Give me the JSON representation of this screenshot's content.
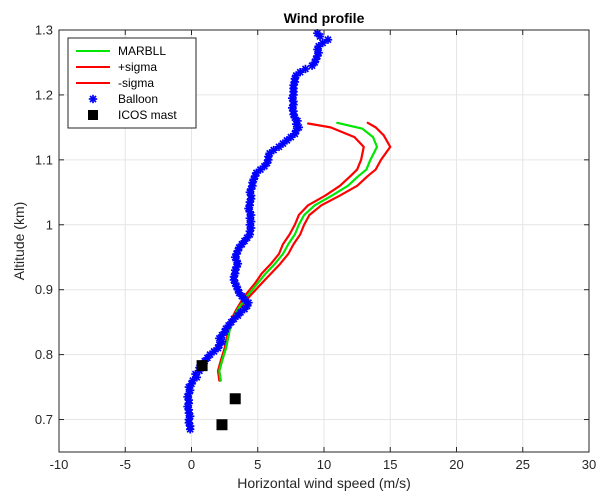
{
  "chart_data": {
    "type": "scatter",
    "title": "Wind profile",
    "xlabel": "Horizontal wind speed (m/s)",
    "ylabel": "Altitude (km)",
    "xlim": [
      -10,
      30
    ],
    "ylim": [
      0.65,
      1.3
    ],
    "x_ticks": [
      -10,
      -5,
      0,
      5,
      10,
      15,
      20,
      25,
      30
    ],
    "y_ticks": [
      0.7,
      0.8,
      0.9,
      1.0,
      1.1,
      1.2,
      1.3
    ],
    "x_tick_labels": [
      "-10",
      "-5",
      "0",
      "5",
      "10",
      "15",
      "20",
      "25",
      "30"
    ],
    "y_tick_labels": [
      "0.7",
      "0.8",
      "0.9",
      "1",
      "1.1",
      "1.2",
      "1.3"
    ],
    "grid": true,
    "legend_position": "top-left",
    "series": [
      {
        "name": "MARBLL",
        "style": "line",
        "color": "#00e600",
        "points": [
          [
            2.2,
            0.76
          ],
          [
            2.1,
            0.775
          ],
          [
            2.3,
            0.79
          ],
          [
            2.6,
            0.81
          ],
          [
            2.8,
            0.83
          ],
          [
            3.0,
            0.85
          ],
          [
            3.5,
            0.87
          ],
          [
            4.2,
            0.89
          ],
          [
            5.0,
            0.91
          ],
          [
            5.6,
            0.925
          ],
          [
            6.3,
            0.94
          ],
          [
            6.9,
            0.955
          ],
          [
            7.3,
            0.97
          ],
          [
            7.8,
            0.985
          ],
          [
            8.1,
            1.0
          ],
          [
            8.5,
            1.015
          ],
          [
            9.3,
            1.03
          ],
          [
            10.6,
            1.045
          ],
          [
            11.8,
            1.06
          ],
          [
            12.6,
            1.075
          ],
          [
            13.2,
            1.085
          ],
          [
            13.5,
            1.1
          ],
          [
            14.0,
            1.12
          ],
          [
            13.7,
            1.135
          ],
          [
            12.9,
            1.148
          ],
          [
            11.0,
            1.157
          ]
        ]
      },
      {
        "name": "+sigma",
        "style": "line",
        "color": "#ff0000",
        "points": [
          [
            2.2,
            0.76
          ],
          [
            2.1,
            0.775
          ],
          [
            2.3,
            0.79
          ],
          [
            2.6,
            0.81
          ],
          [
            2.8,
            0.83
          ],
          [
            3.0,
            0.85
          ],
          [
            3.6,
            0.87
          ],
          [
            4.4,
            0.89
          ],
          [
            5.3,
            0.91
          ],
          [
            6.0,
            0.925
          ],
          [
            6.7,
            0.94
          ],
          [
            7.3,
            0.955
          ],
          [
            7.7,
            0.97
          ],
          [
            8.2,
            0.985
          ],
          [
            8.5,
            1.0
          ],
          [
            8.9,
            1.015
          ],
          [
            9.8,
            1.03
          ],
          [
            11.2,
            1.045
          ],
          [
            12.5,
            1.06
          ],
          [
            13.3,
            1.075
          ],
          [
            13.9,
            1.085
          ],
          [
            14.3,
            1.1
          ],
          [
            15.0,
            1.12
          ],
          [
            14.5,
            1.138
          ],
          [
            13.9,
            1.15
          ],
          [
            13.3,
            1.157
          ]
        ]
      },
      {
        "name": "-sigma",
        "style": "line",
        "color": "#ff0000",
        "points": [
          [
            2.1,
            0.76
          ],
          [
            2.0,
            0.775
          ],
          [
            2.2,
            0.79
          ],
          [
            2.5,
            0.81
          ],
          [
            2.7,
            0.83
          ],
          [
            2.9,
            0.85
          ],
          [
            3.4,
            0.87
          ],
          [
            4.0,
            0.89
          ],
          [
            4.8,
            0.91
          ],
          [
            5.3,
            0.925
          ],
          [
            6.0,
            0.94
          ],
          [
            6.6,
            0.955
          ],
          [
            6.9,
            0.97
          ],
          [
            7.4,
            0.985
          ],
          [
            7.8,
            1.0
          ],
          [
            8.1,
            1.015
          ],
          [
            8.8,
            1.03
          ],
          [
            10.1,
            1.045
          ],
          [
            11.2,
            1.06
          ],
          [
            12.0,
            1.075
          ],
          [
            12.5,
            1.085
          ],
          [
            12.8,
            1.1
          ],
          [
            13.0,
            1.12
          ],
          [
            12.3,
            1.135
          ],
          [
            10.5,
            1.15
          ],
          [
            8.8,
            1.156
          ]
        ]
      },
      {
        "name": "Balloon",
        "style": "markers",
        "marker": "asterisk",
        "color": "#0000ff",
        "points": [
          [
            -0.1,
            0.685
          ],
          [
            -0.1,
            0.69
          ],
          [
            -0.2,
            0.695
          ],
          [
            -0.2,
            0.7
          ],
          [
            -0.1,
            0.705
          ],
          [
            -0.2,
            0.71
          ],
          [
            -0.2,
            0.715
          ],
          [
            -0.3,
            0.72
          ],
          [
            -0.2,
            0.725
          ],
          [
            -0.2,
            0.73
          ],
          [
            -0.3,
            0.735
          ],
          [
            -0.2,
            0.74
          ],
          [
            -0.1,
            0.745
          ],
          [
            -0.2,
            0.75
          ],
          [
            0.0,
            0.755
          ],
          [
            0.1,
            0.76
          ],
          [
            0.4,
            0.765
          ],
          [
            0.3,
            0.77
          ],
          [
            0.6,
            0.775
          ],
          [
            0.6,
            0.78
          ],
          [
            0.8,
            0.785
          ],
          [
            1.0,
            0.79
          ],
          [
            1.2,
            0.795
          ],
          [
            1.4,
            0.8
          ],
          [
            1.7,
            0.805
          ],
          [
            2.0,
            0.81
          ],
          [
            2.1,
            0.815
          ],
          [
            2.3,
            0.82
          ],
          [
            2.1,
            0.825
          ],
          [
            2.3,
            0.83
          ],
          [
            2.5,
            0.835
          ],
          [
            2.6,
            0.84
          ],
          [
            2.8,
            0.845
          ],
          [
            3.0,
            0.85
          ],
          [
            3.2,
            0.855
          ],
          [
            3.5,
            0.86
          ],
          [
            3.7,
            0.865
          ],
          [
            4.0,
            0.87
          ],
          [
            4.2,
            0.875
          ],
          [
            4.3,
            0.88
          ],
          [
            4.0,
            0.885
          ],
          [
            3.8,
            0.89
          ],
          [
            3.6,
            0.895
          ],
          [
            3.5,
            0.9
          ],
          [
            3.4,
            0.905
          ],
          [
            3.3,
            0.91
          ],
          [
            3.2,
            0.915
          ],
          [
            3.2,
            0.92
          ],
          [
            3.3,
            0.925
          ],
          [
            3.3,
            0.93
          ],
          [
            3.4,
            0.935
          ],
          [
            3.5,
            0.94
          ],
          [
            3.4,
            0.945
          ],
          [
            3.3,
            0.95
          ],
          [
            3.4,
            0.955
          ],
          [
            3.5,
            0.96
          ],
          [
            3.6,
            0.965
          ],
          [
            3.8,
            0.97
          ],
          [
            4.0,
            0.975
          ],
          [
            4.2,
            0.98
          ],
          [
            4.4,
            0.985
          ],
          [
            4.4,
            0.99
          ],
          [
            4.5,
            0.995
          ],
          [
            4.4,
            1.0
          ],
          [
            4.5,
            1.005
          ],
          [
            4.4,
            1.01
          ],
          [
            4.5,
            1.015
          ],
          [
            4.4,
            1.02
          ],
          [
            4.3,
            1.025
          ],
          [
            4.4,
            1.03
          ],
          [
            4.4,
            1.035
          ],
          [
            4.5,
            1.04
          ],
          [
            4.5,
            1.045
          ],
          [
            4.4,
            1.05
          ],
          [
            4.5,
            1.055
          ],
          [
            4.6,
            1.06
          ],
          [
            4.6,
            1.065
          ],
          [
            4.7,
            1.07
          ],
          [
            4.8,
            1.075
          ],
          [
            4.9,
            1.08
          ],
          [
            5.2,
            1.085
          ],
          [
            5.5,
            1.09
          ],
          [
            5.7,
            1.095
          ],
          [
            5.8,
            1.1
          ],
          [
            5.8,
            1.105
          ],
          [
            5.9,
            1.11
          ],
          [
            6.2,
            1.115
          ],
          [
            6.6,
            1.12
          ],
          [
            6.9,
            1.125
          ],
          [
            7.2,
            1.13
          ],
          [
            7.5,
            1.135
          ],
          [
            7.8,
            1.14
          ],
          [
            7.9,
            1.145
          ],
          [
            8.1,
            1.15
          ],
          [
            7.9,
            1.155
          ],
          [
            8.0,
            1.16
          ],
          [
            7.8,
            1.165
          ],
          [
            7.7,
            1.17
          ],
          [
            7.7,
            1.175
          ],
          [
            7.6,
            1.18
          ],
          [
            7.7,
            1.185
          ],
          [
            7.7,
            1.19
          ],
          [
            7.6,
            1.195
          ],
          [
            7.7,
            1.2
          ],
          [
            7.7,
            1.205
          ],
          [
            7.7,
            1.21
          ],
          [
            7.7,
            1.215
          ],
          [
            7.8,
            1.22
          ],
          [
            7.8,
            1.225
          ],
          [
            7.9,
            1.23
          ],
          [
            8.2,
            1.235
          ],
          [
            8.6,
            1.24
          ],
          [
            9.1,
            1.245
          ],
          [
            9.3,
            1.25
          ],
          [
            9.4,
            1.255
          ],
          [
            9.5,
            1.26
          ],
          [
            9.6,
            1.265
          ],
          [
            9.5,
            1.27
          ],
          [
            9.6,
            1.275
          ],
          [
            9.9,
            1.28
          ],
          [
            10.3,
            1.285
          ],
          [
            9.7,
            1.29
          ],
          [
            9.5,
            1.295
          ]
        ]
      },
      {
        "name": "ICOS mast",
        "style": "markers",
        "marker": "square",
        "color": "#000000",
        "points": [
          [
            0.8,
            0.783
          ],
          [
            3.3,
            0.732
          ],
          [
            2.3,
            0.692
          ]
        ]
      }
    ]
  }
}
